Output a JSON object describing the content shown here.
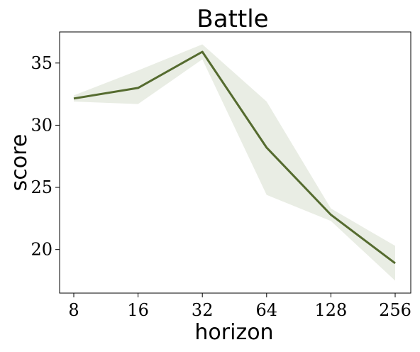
{
  "chart_data": {
    "type": "line",
    "title": "Battle",
    "xlabel": "horizon",
    "ylabel": "score",
    "categories": [
      "8",
      "16",
      "32",
      "64",
      "128",
      "256"
    ],
    "series": [
      {
        "values": [
          32.15,
          33.0,
          35.9,
          28.2,
          22.8,
          18.9
        ],
        "lower": [
          31.9,
          31.7,
          35.3,
          24.4,
          22.3,
          17.5
        ],
        "upper": [
          32.4,
          34.4,
          36.5,
          31.9,
          23.3,
          20.3
        ],
        "color": "#556b2f",
        "band_color": "#e9ede4"
      }
    ],
    "yticks": [
      20,
      25,
      30,
      35
    ],
    "ytick_labels": [
      "20",
      "25",
      "30",
      "35"
    ],
    "ylim": [
      16.5,
      37.5
    ],
    "grid": false
  }
}
